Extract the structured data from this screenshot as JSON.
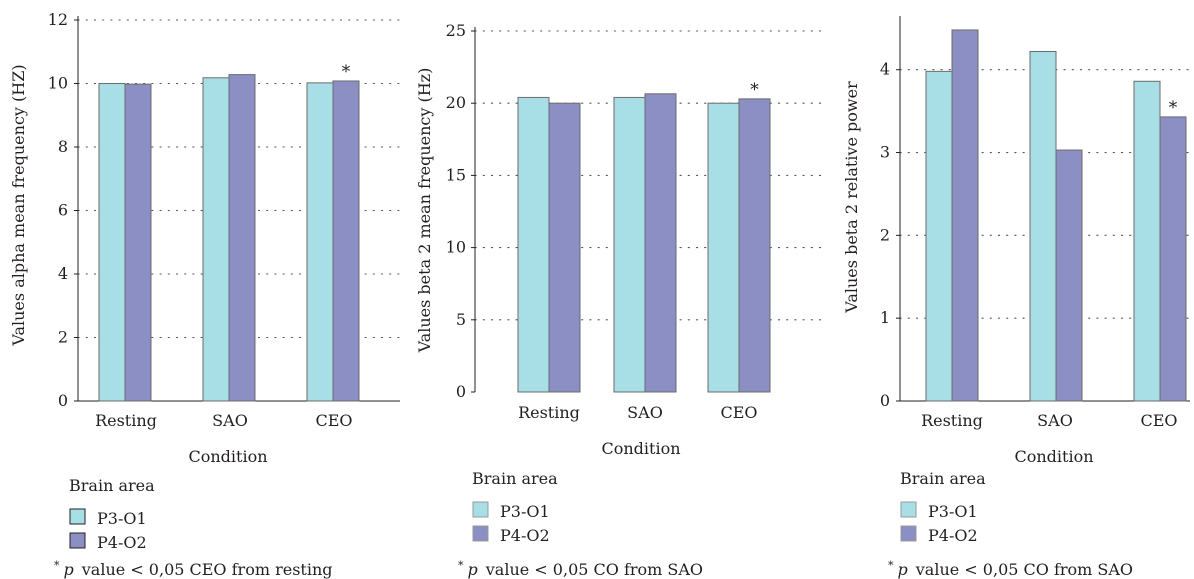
{
  "chart_data": [
    {
      "type": "bar",
      "categories": [
        "Resting",
        "SAO",
        "CEO"
      ],
      "series": [
        {
          "name": "P3-O1",
          "values": [
            10.0,
            10.18,
            10.02
          ]
        },
        {
          "name": "P4-O2",
          "values": [
            9.98,
            10.28,
            10.08
          ]
        }
      ],
      "xlabel": "Condition",
      "ylabel": "Values alpha mean frequency (HZ)",
      "ylim": [
        0,
        12
      ],
      "yticks": [
        0,
        2,
        4,
        6,
        8,
        10,
        12
      ],
      "grid": "dotted horizontal",
      "legend_title": "Brain area",
      "legend_position": "bottom-left",
      "annotations": [
        {
          "text": "*",
          "category": "CEO",
          "series": "P4-O2"
        }
      ],
      "footnote": {
        "symbol": "*",
        "p": "p",
        "text": "value < 0,05 CEO from resting"
      },
      "colors": [
        "#a8dfe6",
        "#8b8fc3"
      ]
    },
    {
      "type": "bar",
      "categories": [
        "Resting",
        "SAO",
        "CEO"
      ],
      "series": [
        {
          "name": "P3-O1",
          "values": [
            20.4,
            20.4,
            20.0
          ]
        },
        {
          "name": "P4-O2",
          "values": [
            20.0,
            20.65,
            20.3
          ]
        }
      ],
      "xlabel": "Condition",
      "ylabel": "Values beta 2 mean frequency (Hz)",
      "ylim": [
        0,
        25
      ],
      "yticks": [
        0,
        5,
        10,
        15,
        20,
        25
      ],
      "grid": "dotted horizontal",
      "legend_title": "Brain area",
      "legend_position": "bottom-left",
      "annotations": [
        {
          "text": "*",
          "category": "CEO",
          "series": "P4-O2"
        }
      ],
      "footnote": {
        "symbol": "*",
        "p": "p",
        "text": "value < 0,05 CO from SAO"
      },
      "colors": [
        "#a8dfe6",
        "#8b8fc3"
      ]
    },
    {
      "type": "bar",
      "categories": [
        "Resting",
        "SAO",
        "CEO"
      ],
      "series": [
        {
          "name": "P3-O1",
          "values": [
            3.98,
            4.22,
            3.86
          ]
        },
        {
          "name": "P4-O2",
          "values": [
            4.48,
            3.03,
            3.43
          ]
        }
      ],
      "xlabel": "Condition",
      "ylabel": "Values beta 2 relative power",
      "ylim": [
        0,
        4.6
      ],
      "yticks": [
        0,
        1,
        2,
        3,
        4
      ],
      "grid": "dotted horizontal",
      "legend_title": "Brain area",
      "legend_position": "bottom-left",
      "annotations": [
        {
          "text": "*",
          "category": "CEO",
          "series": "P4-O2"
        }
      ],
      "footnote": {
        "symbol": "*",
        "p": "p",
        "text": "value < 0,05 CO from SAO"
      },
      "colors": [
        "#a8dfe6",
        "#8b8fc3"
      ]
    }
  ]
}
